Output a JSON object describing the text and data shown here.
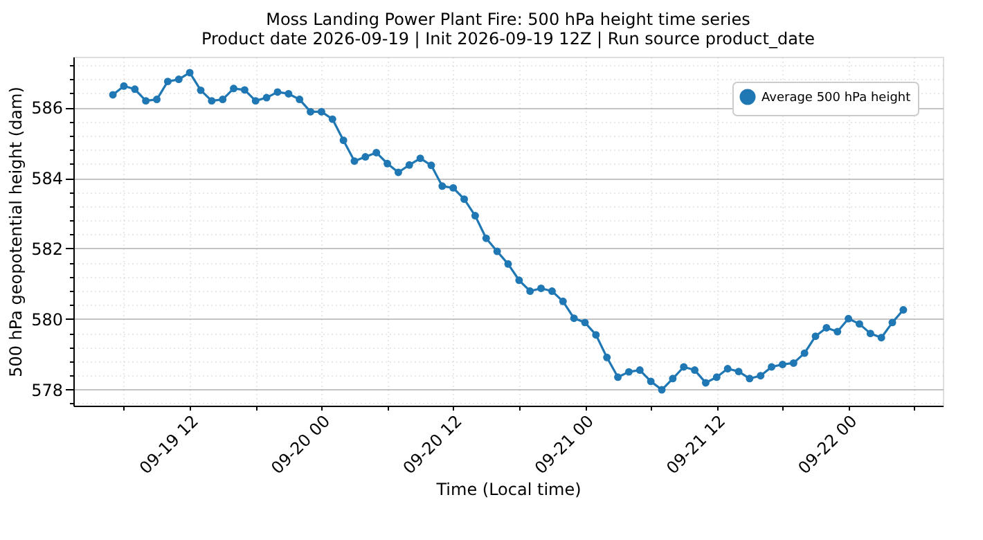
{
  "chart_data": {
    "type": "line",
    "title": "Moss Landing Power Plant Fire: 500 hPa height time series",
    "subtitle": "Product date 2026-09-19 | Init 2026-09-19 12Z | Run source product_date",
    "xlabel": "Time (Local time)",
    "ylabel": "500 hPa geopotential height (dam)",
    "x": [
      "2026-09-19T05:00",
      "2026-09-19T06:00",
      "2026-09-19T07:00",
      "2026-09-19T08:00",
      "2026-09-19T09:00",
      "2026-09-19T10:00",
      "2026-09-19T11:00",
      "2026-09-19T12:00",
      "2026-09-19T13:00",
      "2026-09-19T14:00",
      "2026-09-19T15:00",
      "2026-09-19T16:00",
      "2026-09-19T17:00",
      "2026-09-19T18:00",
      "2026-09-19T19:00",
      "2026-09-19T20:00",
      "2026-09-19T21:00",
      "2026-09-19T22:00",
      "2026-09-19T23:00",
      "2026-09-20T00:00",
      "2026-09-20T01:00",
      "2026-09-20T02:00",
      "2026-09-20T03:00",
      "2026-09-20T04:00",
      "2026-09-20T05:00",
      "2026-09-20T06:00",
      "2026-09-20T07:00",
      "2026-09-20T08:00",
      "2026-09-20T09:00",
      "2026-09-20T10:00",
      "2026-09-20T11:00",
      "2026-09-20T12:00",
      "2026-09-20T13:00",
      "2026-09-20T14:00",
      "2026-09-20T15:00",
      "2026-09-20T16:00",
      "2026-09-20T17:00",
      "2026-09-20T18:00",
      "2026-09-20T19:00",
      "2026-09-20T20:00",
      "2026-09-20T21:00",
      "2026-09-20T22:00",
      "2026-09-20T23:00",
      "2026-09-21T00:00",
      "2026-09-21T01:00",
      "2026-09-21T02:00",
      "2026-09-21T03:00",
      "2026-09-21T04:00",
      "2026-09-21T05:00",
      "2026-09-21T06:00",
      "2026-09-21T07:00",
      "2026-09-21T08:00",
      "2026-09-21T09:00",
      "2026-09-21T10:00",
      "2026-09-21T11:00",
      "2026-09-21T12:00",
      "2026-09-21T13:00",
      "2026-09-21T14:00",
      "2026-09-21T15:00",
      "2026-09-21T16:00",
      "2026-09-21T17:00",
      "2026-09-21T18:00",
      "2026-09-21T19:00",
      "2026-09-21T20:00",
      "2026-09-21T21:00",
      "2026-09-21T22:00",
      "2026-09-21T23:00",
      "2026-09-22T00:00",
      "2026-09-22T01:00",
      "2026-09-22T02:00",
      "2026-09-22T03:00",
      "2026-09-22T04:00",
      "2026-09-22T05:00"
    ],
    "series": [
      {
        "name": "Average 500 hPa height",
        "color": "#1f77b4",
        "values": [
          586.36,
          586.61,
          586.52,
          586.19,
          586.23,
          586.74,
          586.8,
          586.99,
          586.49,
          586.19,
          586.23,
          586.54,
          586.5,
          586.19,
          586.28,
          586.44,
          586.39,
          586.23,
          585.88,
          585.88,
          585.67,
          585.07,
          584.48,
          584.6,
          584.72,
          584.41,
          584.16,
          584.37,
          584.56,
          584.36,
          583.77,
          583.72,
          583.4,
          582.93,
          582.29,
          581.92,
          581.56,
          581.1,
          580.79,
          580.87,
          580.79,
          580.5,
          580.02,
          579.9,
          579.55,
          578.91,
          578.35,
          578.5,
          578.55,
          578.23,
          577.99,
          578.31,
          578.64,
          578.55,
          578.19,
          578.35,
          578.59,
          578.51,
          578.31,
          578.39,
          578.64,
          578.71,
          578.75,
          579.03,
          579.51,
          579.75,
          579.64,
          580.01,
          579.86,
          579.59,
          579.47,
          579.9,
          580.26
        ]
      }
    ],
    "xlim": [
      "2026-09-19T01:24",
      "2026-09-22T08:36"
    ],
    "xticks": [
      {
        "value": "2026-09-19T06:00",
        "label": null
      },
      {
        "value": "2026-09-19T12:00",
        "label": "09-19 12"
      },
      {
        "value": "2026-09-19T18:00",
        "label": null
      },
      {
        "value": "2026-09-20T00:00",
        "label": "09-20 00"
      },
      {
        "value": "2026-09-20T06:00",
        "label": null
      },
      {
        "value": "2026-09-20T12:00",
        "label": "09-20 12"
      },
      {
        "value": "2026-09-20T18:00",
        "label": null
      },
      {
        "value": "2026-09-21T00:00",
        "label": "09-21 00"
      },
      {
        "value": "2026-09-21T06:00",
        "label": null
      },
      {
        "value": "2026-09-21T12:00",
        "label": "09-21 12"
      },
      {
        "value": "2026-09-21T18:00",
        "label": null
      },
      {
        "value": "2026-09-22T00:00",
        "label": "09-22 00"
      },
      {
        "value": "2026-09-22T06:00",
        "label": null
      }
    ],
    "ylim": [
      577.54,
      587.44
    ],
    "yticks": [
      {
        "value": 577.6,
        "label": null
      },
      578,
      {
        "value": 578.4,
        "label": null
      },
      {
        "value": 578.8,
        "label": null
      },
      {
        "value": 579.2,
        "label": null
      },
      {
        "value": 579.6,
        "label": null
      },
      580,
      {
        "value": 580.4,
        "label": null
      },
      {
        "value": 580.8,
        "label": null
      },
      {
        "value": 581.2,
        "label": null
      },
      {
        "value": 581.6,
        "label": null
      },
      582,
      {
        "value": 582.4,
        "label": null
      },
      {
        "value": 582.8,
        "label": null
      },
      {
        "value": 583.2,
        "label": null
      },
      {
        "value": 583.6,
        "label": null
      },
      584,
      {
        "value": 584.4,
        "label": null
      },
      {
        "value": 584.8,
        "label": null
      },
      {
        "value": 585.2,
        "label": null
      },
      {
        "value": 585.6,
        "label": null
      },
      586,
      {
        "value": 586.4,
        "label": null
      },
      {
        "value": 586.8,
        "label": null
      },
      {
        "value": 587.2,
        "label": null
      }
    ],
    "grid": true,
    "legend": "top right",
    "marker": "circle",
    "line_style": "solid"
  }
}
